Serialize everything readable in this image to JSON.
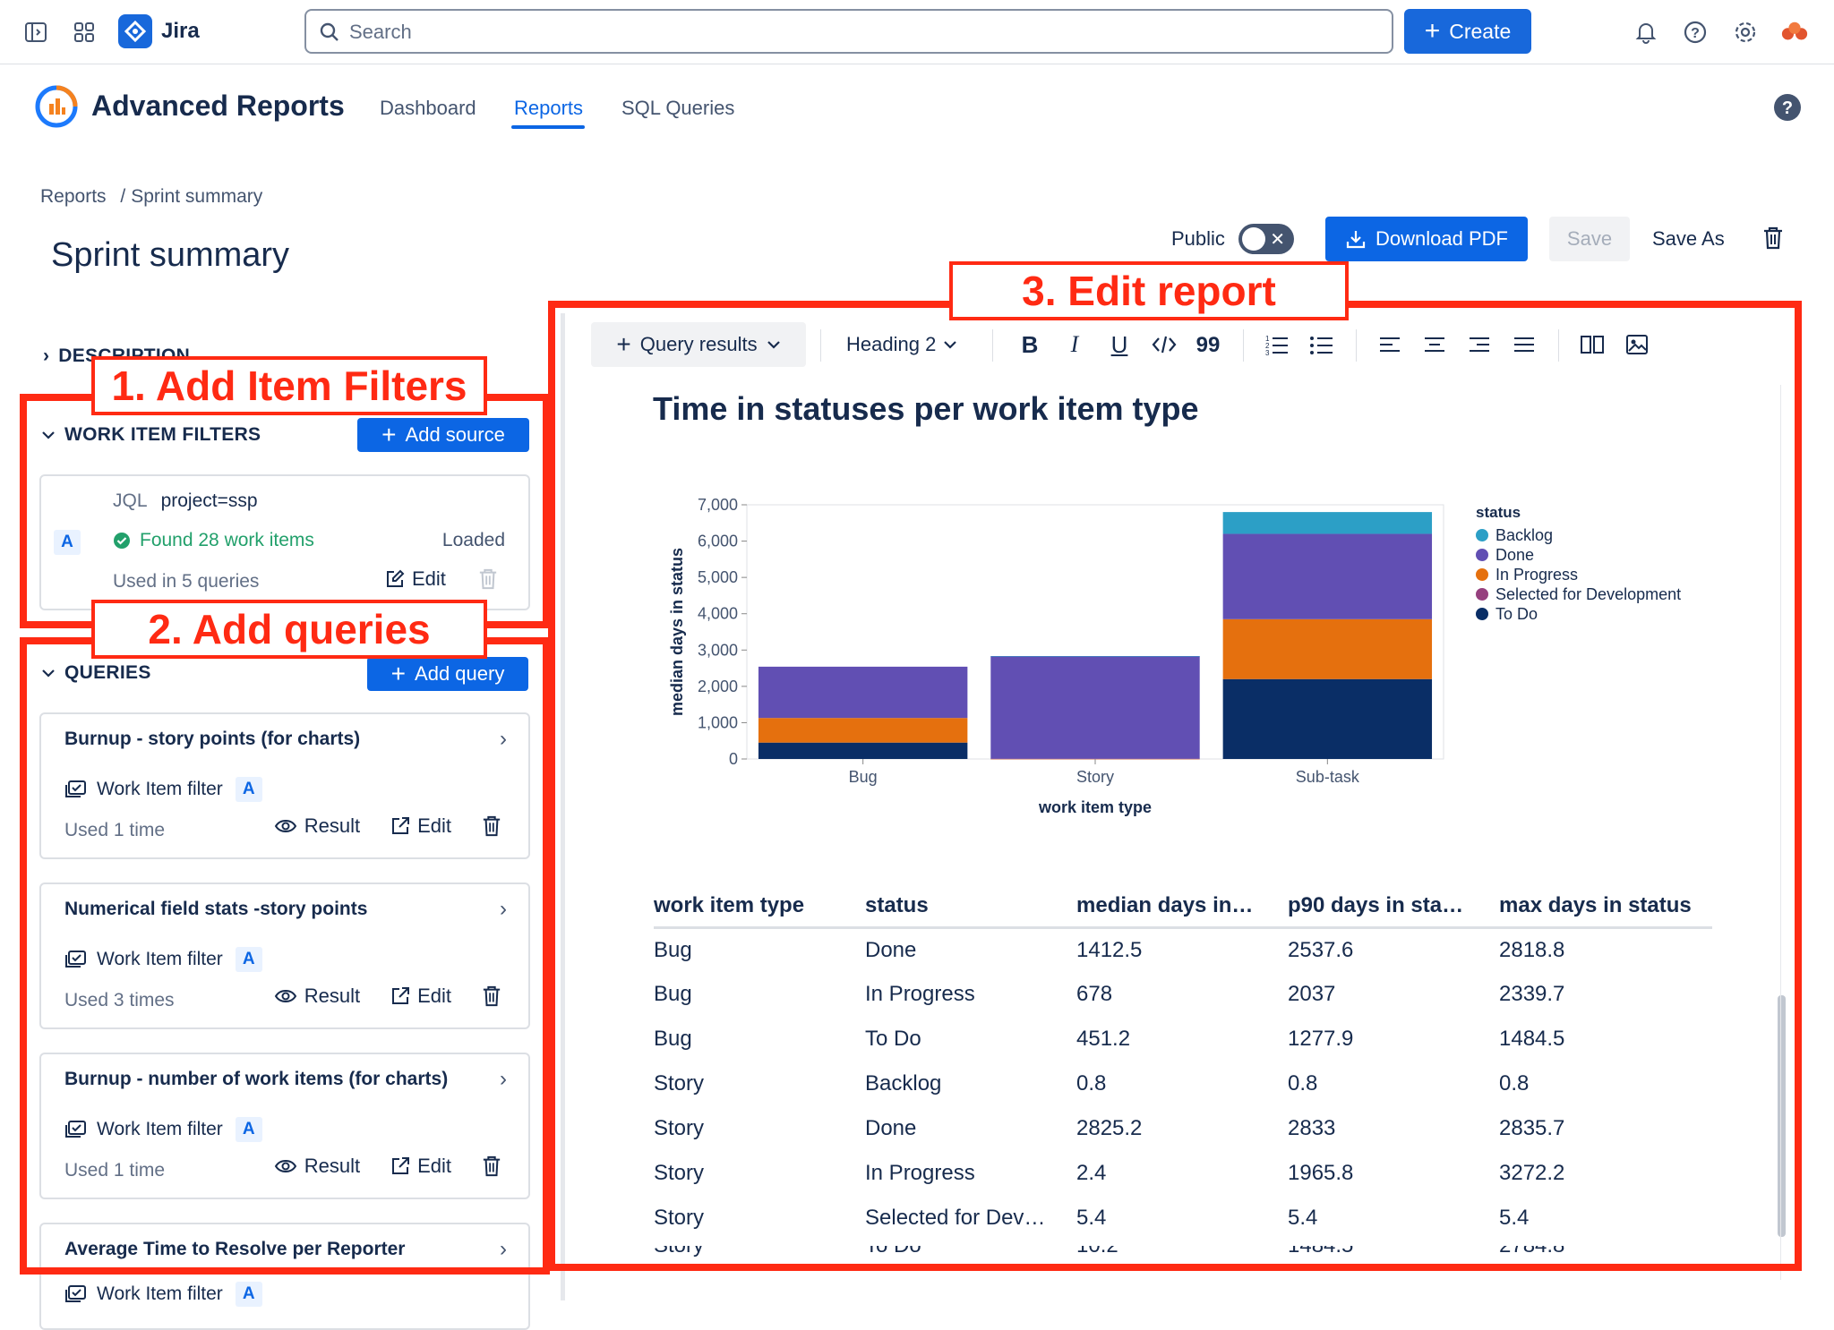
{
  "topbar": {
    "app_name": "Jira",
    "search_placeholder": "Search",
    "create_label": "Create"
  },
  "app": {
    "title": "Advanced Reports",
    "nav": [
      {
        "label": "Dashboard"
      },
      {
        "label": "Reports"
      },
      {
        "label": "SQL Queries"
      }
    ]
  },
  "breadcrumb": {
    "root": "Reports",
    "sep": "/",
    "current": "Sprint summary"
  },
  "page_title": "Sprint summary",
  "actions": {
    "public_label": "Public",
    "download_label": "Download PDF",
    "save_label": "Save",
    "save_as_label": "Save As"
  },
  "left": {
    "description_label": "DESCRIPTION",
    "filters_label": "WORK ITEM FILTERS",
    "add_source_label": "Add source",
    "filter": {
      "chip": "A",
      "jql_label": "JQL",
      "jql_value": "project=ssp",
      "found": "Found 28 work items",
      "status": "Loaded",
      "used": "Used in 5 queries",
      "edit": "Edit"
    },
    "queries_label": "QUERIES",
    "add_query_label": "Add query",
    "queries": [
      {
        "title": "Burnup - story points (for charts)",
        "filter": "Work Item filter",
        "chip": "A",
        "used": "Used 1 time",
        "result": "Result",
        "edit": "Edit"
      },
      {
        "title": "Numerical field stats -story points",
        "filter": "Work Item filter",
        "chip": "A",
        "used": "Used 3 times",
        "result": "Result",
        "edit": "Edit"
      },
      {
        "title": "Burnup - number of work items (for charts)",
        "filter": "Work Item filter",
        "chip": "A",
        "used": "Used 1 time",
        "result": "Result",
        "edit": "Edit"
      },
      {
        "title": "Average Time to Resolve per Reporter",
        "filter": "Work Item filter",
        "chip": "A"
      }
    ]
  },
  "toolbar": {
    "query_results": "Query results",
    "heading": "Heading 2",
    "bold": "B",
    "italic": "I",
    "underline": "U",
    "quote": "99"
  },
  "report_heading": "Time in statuses per work item type",
  "annotations": {
    "one": "1. Add Item Filters",
    "two": "2. Add queries",
    "three": "3. Edit report"
  },
  "chart_data": {
    "type": "bar",
    "stacked": true,
    "xlabel": "work item type",
    "ylabel": "median days in status",
    "categories": [
      "Bug",
      "Story",
      "Sub-task"
    ],
    "ylim": [
      0,
      7000
    ],
    "yticks": [
      "0",
      "1,000",
      "2,000",
      "3,000",
      "4,000",
      "5,000",
      "6,000",
      "7,000"
    ],
    "legend_title": "status",
    "legend_position": "right",
    "series": [
      {
        "name": "Backlog",
        "color": "#2c9fc6",
        "values": [
          0,
          0.8,
          600
        ]
      },
      {
        "name": "Done",
        "color": "#614fb3",
        "values": [
          1412.5,
          2825.2,
          2350
        ]
      },
      {
        "name": "In Progress",
        "color": "#e5700e",
        "values": [
          678,
          2.4,
          1650
        ]
      },
      {
        "name": "Selected for Development",
        "color": "#96407e",
        "values": [
          0,
          5.4,
          0
        ]
      },
      {
        "name": "To Do",
        "color": "#0a2e66",
        "values": [
          451.2,
          0,
          2200
        ]
      }
    ]
  },
  "table": {
    "headers": [
      "work item type",
      "status",
      "median days in…",
      "p90 days in sta…",
      "max days in status"
    ],
    "rows": [
      [
        "Bug",
        "Done",
        "1412.5",
        "2537.6",
        "2818.8"
      ],
      [
        "Bug",
        "In Progress",
        "678",
        "2037",
        "2339.7"
      ],
      [
        "Bug",
        "To Do",
        "451.2",
        "1277.9",
        "1484.5"
      ],
      [
        "Story",
        "Backlog",
        "0.8",
        "0.8",
        "0.8"
      ],
      [
        "Story",
        "Done",
        "2825.2",
        "2833",
        "2835.7"
      ],
      [
        "Story",
        "In Progress",
        "2.4",
        "1965.8",
        "3272.2"
      ],
      [
        "Story",
        "Selected for Dev…",
        "5.4",
        "5.4",
        "5.4"
      ]
    ]
  }
}
